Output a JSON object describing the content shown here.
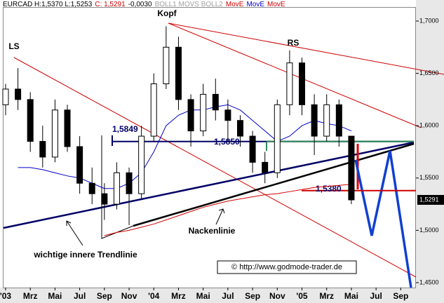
{
  "chart_data": {
    "type": "candlestick",
    "header": [
      {
        "text": "EURCAD H:1,5370 L:1,5253",
        "color": "#000000"
      },
      {
        "text": "C: 1,5291",
        "color": "#d00000"
      },
      {
        "text": "-0,0030",
        "color": "#000000"
      },
      {
        "text": "BOLL1 MOVS BOLL2",
        "color": "#a0a0a0"
      },
      {
        "text": "MovE",
        "color": "#d00000"
      },
      {
        "text": "MovE",
        "color": "#0000cc"
      },
      {
        "text": "MovE",
        "color": "#d00000"
      }
    ],
    "x": [
      0,
      1,
      2,
      3,
      4,
      5,
      6,
      7,
      8,
      9,
      10,
      11,
      12,
      13,
      14,
      15,
      16,
      17,
      18,
      19,
      20,
      21,
      22,
      23,
      24,
      25,
      26,
      27,
      28
    ],
    "open": [
      1.62,
      1.635,
      1.625,
      1.585,
      1.57,
      1.615,
      1.58,
      1.545,
      1.535,
      1.525,
      1.555,
      1.535,
      1.59,
      1.64,
      1.675,
      1.625,
      1.595,
      1.63,
      1.615,
      1.605,
      1.59,
      1.565,
      1.555,
      1.62,
      1.66,
      1.62,
      1.59,
      1.62,
      1.59
    ],
    "high": [
      1.64,
      1.655,
      1.632,
      1.6,
      1.625,
      1.62,
      1.59,
      1.56,
      1.545,
      1.565,
      1.56,
      1.6,
      1.65,
      1.695,
      1.685,
      1.63,
      1.64,
      1.645,
      1.625,
      1.61,
      1.595,
      1.575,
      1.625,
      1.672,
      1.665,
      1.63,
      1.63,
      1.625,
      1.59
    ],
    "low": [
      1.61,
      1.615,
      1.575,
      1.56,
      1.565,
      1.575,
      1.535,
      1.525,
      1.51,
      1.52,
      1.505,
      1.53,
      1.585,
      1.635,
      1.615,
      1.58,
      1.59,
      1.605,
      1.585,
      1.58,
      1.555,
      1.545,
      1.55,
      1.61,
      1.61,
      1.572,
      1.585,
      1.58,
      1.525
    ],
    "close": [
      1.635,
      1.625,
      1.585,
      1.57,
      1.615,
      1.58,
      1.545,
      1.535,
      1.525,
      1.555,
      1.535,
      1.59,
      1.64,
      1.675,
      1.625,
      1.595,
      1.63,
      1.615,
      1.605,
      1.59,
      1.565,
      1.555,
      1.62,
      1.66,
      1.62,
      1.59,
      1.62,
      1.59,
      1.5291
    ],
    "series": [
      {
        "color": "#0000cc",
        "values": [
          null,
          1.56,
          1.56,
          1.558,
          1.555,
          1.552,
          1.55,
          1.545,
          1.54,
          1.54,
          1.545,
          1.555,
          1.575,
          1.6,
          1.61,
          1.615,
          1.615,
          1.618,
          1.62,
          1.615,
          1.605,
          1.595,
          1.585,
          1.59,
          1.6,
          1.605,
          1.602,
          1.6,
          1.595
        ]
      },
      {
        "color": "#d00000",
        "values": [
          null,
          null,
          null,
          null,
          null,
          null,
          null,
          null,
          1.495,
          1.498,
          1.5,
          1.503,
          1.506,
          1.51,
          1.514,
          1.518,
          1.522,
          1.525,
          1.528,
          1.53,
          1.532,
          1.534,
          1.535,
          1.537,
          1.539,
          1.541,
          1.542,
          1.543,
          1.544
        ]
      }
    ],
    "xlim": [
      -0.17,
      33.23
    ],
    "ylim": [
      1.4453,
      1.7134
    ],
    "xticks": [
      {
        "value": 0,
        "label": "'03"
      },
      {
        "value": 2,
        "label": "Mrz"
      },
      {
        "value": 4,
        "label": "Mai"
      },
      {
        "value": 6,
        "label": "Jul"
      },
      {
        "value": 8,
        "label": "Sep"
      },
      {
        "value": 10,
        "label": "Nov"
      },
      {
        "value": 12,
        "label": "'04"
      },
      {
        "value": 14,
        "label": "Mrz"
      },
      {
        "value": 16,
        "label": "Mai"
      },
      {
        "value": 18,
        "label": "Jul"
      },
      {
        "value": 20,
        "label": "Sep"
      },
      {
        "value": 22,
        "label": "Nov"
      },
      {
        "value": 24,
        "label": "'05"
      },
      {
        "value": 26,
        "label": "Mrz"
      },
      {
        "value": 28,
        "label": "Mai"
      },
      {
        "value": 30,
        "label": "Jul"
      },
      {
        "value": 32,
        "label": "Sep"
      }
    ],
    "yticks": [
      {
        "value": 1.45,
        "label": "1,4500"
      },
      {
        "value": 1.5,
        "label": "1,5000"
      },
      {
        "value": 1.55,
        "label": "1,5500"
      },
      {
        "value": 1.6,
        "label": "1,6000"
      },
      {
        "value": 1.65,
        "label": "1,6500"
      },
      {
        "value": 1.7,
        "label": "1,7000"
      }
    ],
    "last_price": {
      "value": 1.5291,
      "label": "1,5291"
    },
    "levels": [
      {
        "value": 1.5849,
        "label": "1,5849",
        "color": "#000066"
      },
      {
        "value": 1.585,
        "label": "1,5850",
        "color": "#2e8b57"
      },
      {
        "value": 1.538,
        "label": "1,5380",
        "color": "#d00000"
      }
    ],
    "annotations": [
      "LS",
      "Kopf",
      "RS",
      "Nackenlinie",
      "wichtige innere Trendlinie",
      "© http://www.godmode-trader.de"
    ]
  }
}
